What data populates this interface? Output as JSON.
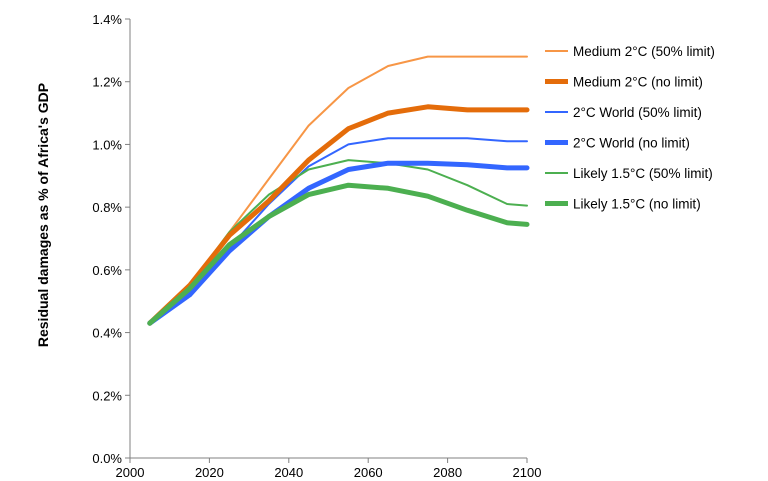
{
  "chart_data": {
    "type": "line",
    "title": "",
    "xlabel": "",
    "ylabel": "Residual damages as % of Africa's GDP",
    "xlim": [
      2000,
      2100
    ],
    "ylim": [
      0,
      1.4
    ],
    "xticks": [
      "2000",
      "2020",
      "2040",
      "2060",
      "2080",
      "2100"
    ],
    "yticks": [
      "0.0%",
      "0.2%",
      "0.4%",
      "0.6%",
      "0.8%",
      "1.0%",
      "1.2%",
      "1.4%"
    ],
    "x": [
      2005,
      2015,
      2025,
      2035,
      2045,
      2055,
      2065,
      2075,
      2085,
      2095,
      2100
    ],
    "legend_position": "right",
    "grid": false,
    "series": [
      {
        "name": "Medium 2°C (50% limit)",
        "color": "#f79646",
        "width": "thin",
        "values": [
          0.43,
          0.55,
          0.72,
          0.89,
          1.06,
          1.18,
          1.25,
          1.28,
          1.28,
          1.28,
          1.28
        ]
      },
      {
        "name": "Medium 2°C (no limit)",
        "color": "#e46c0a",
        "width": "thick",
        "values": [
          0.43,
          0.55,
          0.71,
          0.82,
          0.95,
          1.05,
          1.1,
          1.12,
          1.11,
          1.11,
          1.11
        ]
      },
      {
        "name": "2°C World (50% limit)",
        "color": "#3366ff",
        "width": "thin",
        "values": [
          0.43,
          0.52,
          0.67,
          0.81,
          0.93,
          1.0,
          1.02,
          1.02,
          1.02,
          1.01,
          1.01
        ]
      },
      {
        "name": "2°C World (no limit)",
        "color": "#3366ff",
        "width": "thick",
        "values": [
          0.43,
          0.52,
          0.66,
          0.77,
          0.86,
          0.92,
          0.94,
          0.94,
          0.935,
          0.925,
          0.925
        ]
      },
      {
        "name": "Likely 1.5°C (50% limit)",
        "color": "#4caf50",
        "width": "thin",
        "values": [
          0.43,
          0.55,
          0.72,
          0.84,
          0.92,
          0.95,
          0.94,
          0.92,
          0.87,
          0.81,
          0.805
        ]
      },
      {
        "name": "Likely 1.5°C (no limit)",
        "color": "#4caf50",
        "width": "thick",
        "values": [
          0.43,
          0.54,
          0.68,
          0.77,
          0.84,
          0.87,
          0.86,
          0.835,
          0.79,
          0.75,
          0.745
        ]
      }
    ]
  }
}
